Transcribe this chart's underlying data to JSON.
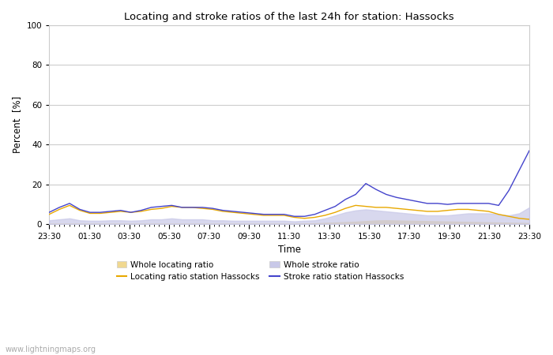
{
  "title": "Locating and stroke ratios of the last 24h for station: Hassocks",
  "xlabel": "Time",
  "ylabel": "Percent  [%]",
  "xlim": [
    0,
    48
  ],
  "ylim": [
    0,
    100
  ],
  "yticks": [
    0,
    20,
    40,
    60,
    80,
    100
  ],
  "xtick_labels": [
    "23:30",
    "01:30",
    "03:30",
    "05:30",
    "07:30",
    "09:30",
    "11:30",
    "13:30",
    "15:30",
    "17:30",
    "19:30",
    "21:30",
    "23:30"
  ],
  "background_color": "#ffffff",
  "plot_bg_color": "#ffffff",
  "grid_color": "#cccccc",
  "watermark": "www.lightningmaps.org",
  "color_locating_line": "#e8a800",
  "color_locating_fill": "#f0d890",
  "color_stroke_line": "#4444cc",
  "color_stroke_fill": "#c8c8e8",
  "whole_locating_ratio": [
    0.3,
    0.3,
    0.3,
    0.3,
    0.3,
    0.3,
    0.3,
    0.3,
    0.3,
    0.3,
    0.3,
    0.3,
    0.3,
    0.3,
    0.3,
    0.3,
    0.3,
    0.3,
    0.3,
    0.3,
    0.3,
    0.3,
    0.3,
    0.3,
    0.3,
    0.4,
    0.5,
    0.7,
    0.9,
    1.1,
    1.3,
    1.6,
    1.9,
    2.0,
    1.9,
    1.8,
    1.7,
    1.6,
    1.5,
    1.4,
    1.3,
    1.2,
    1.1,
    1.0,
    0.9,
    0.8,
    0.7,
    0.6
  ],
  "locating_ratio": [
    5.0,
    7.5,
    9.5,
    7.0,
    5.5,
    5.5,
    6.0,
    6.5,
    6.0,
    6.5,
    7.5,
    8.0,
    9.0,
    8.5,
    8.5,
    8.0,
    7.5,
    6.5,
    6.0,
    5.5,
    5.0,
    4.5,
    4.5,
    4.5,
    3.5,
    3.0,
    3.5,
    4.5,
    6.0,
    8.0,
    9.5,
    9.0,
    8.5,
    8.5,
    8.0,
    7.5,
    7.0,
    6.5,
    6.5,
    7.0,
    7.5,
    7.5,
    7.0,
    6.5,
    5.0,
    4.0,
    3.0,
    2.5
  ],
  "whole_stroke_ratio": [
    2.0,
    2.5,
    3.0,
    2.0,
    1.8,
    1.8,
    2.0,
    2.0,
    1.8,
    2.0,
    2.5,
    2.5,
    3.0,
    2.5,
    2.5,
    2.5,
    2.0,
    2.0,
    1.8,
    1.8,
    1.8,
    1.8,
    1.8,
    1.8,
    1.5,
    1.8,
    2.0,
    3.0,
    4.5,
    6.0,
    7.0,
    7.5,
    7.0,
    6.5,
    6.0,
    5.5,
    5.0,
    4.5,
    4.5,
    4.5,
    5.0,
    5.5,
    5.5,
    5.5,
    5.0,
    4.5,
    5.5,
    8.5
  ],
  "stroke_ratio": [
    6.0,
    8.5,
    10.5,
    7.5,
    6.0,
    6.0,
    6.5,
    7.0,
    6.0,
    7.0,
    8.5,
    9.0,
    9.5,
    8.5,
    8.5,
    8.5,
    8.0,
    7.0,
    6.5,
    6.0,
    5.5,
    5.0,
    5.0,
    5.0,
    4.0,
    4.0,
    5.0,
    7.0,
    9.0,
    12.5,
    15.0,
    20.5,
    17.5,
    15.0,
    13.5,
    12.5,
    11.5,
    10.5,
    10.5,
    10.0,
    10.5,
    10.5,
    10.5,
    10.5,
    9.5,
    17.0,
    27.0,
    37.0
  ]
}
